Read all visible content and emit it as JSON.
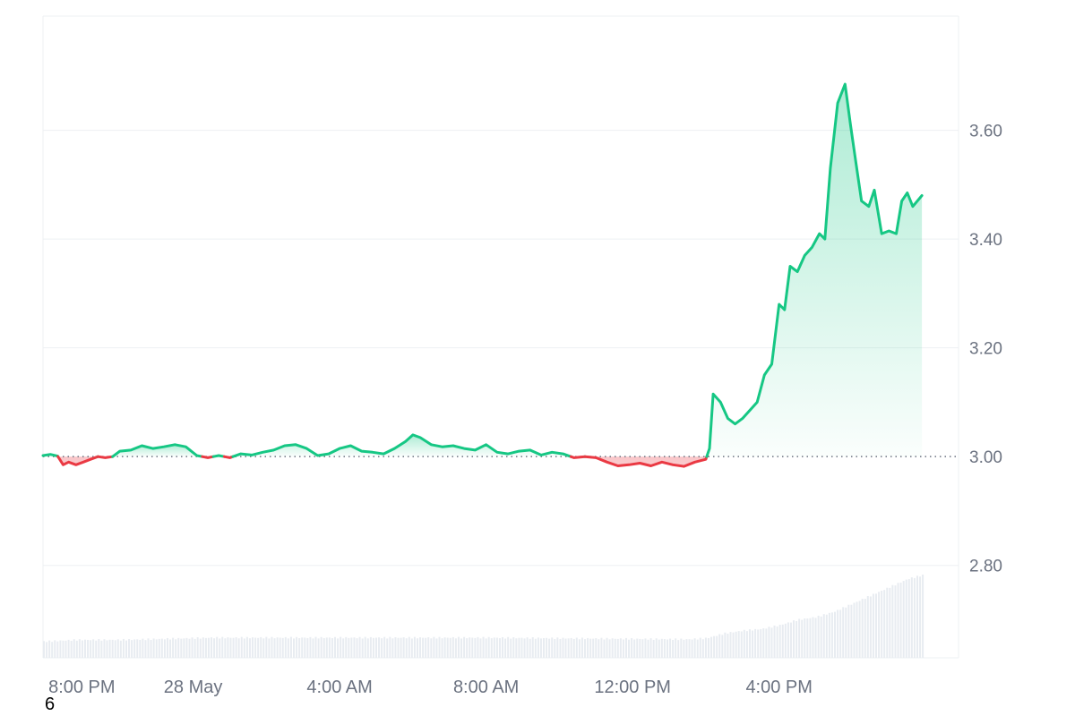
{
  "chart_data": {
    "type": "area",
    "baseline": 3.0,
    "ylim": [
      2.63,
      3.81
    ],
    "y_ticks": [
      "2.80",
      "3.00",
      "3.20",
      "3.40",
      "3.60"
    ],
    "x_ticks": [
      "8:00 PM",
      "28 May",
      "4:00 AM",
      "8:00 AM",
      "12:00 PM",
      "4:00 PM"
    ],
    "x_range_hours": [
      -0.1,
      24.9
    ],
    "x_tick_hours": [
      0,
      4,
      8,
      12,
      16,
      20
    ],
    "grid": true,
    "colors": {
      "up": "#16c784",
      "down": "#ea3943",
      "grid": "#eef0f3",
      "volume": "#e8ecf1",
      "baseline": "#6b7280"
    },
    "price": [
      [
        -0.1,
        3.002
      ],
      [
        0.1,
        3.004
      ],
      [
        0.3,
        3.001
      ],
      [
        0.45,
        2.985
      ],
      [
        0.6,
        2.99
      ],
      [
        0.8,
        2.985
      ],
      [
        1.0,
        2.99
      ],
      [
        1.2,
        2.995
      ],
      [
        1.4,
        3.0
      ],
      [
        1.6,
        2.998
      ],
      [
        1.8,
        3.0
      ],
      [
        2.0,
        3.01
      ],
      [
        2.3,
        3.012
      ],
      [
        2.6,
        3.02
      ],
      [
        2.9,
        3.015
      ],
      [
        3.2,
        3.018
      ],
      [
        3.5,
        3.022
      ],
      [
        3.8,
        3.018
      ],
      [
        4.1,
        3.002
      ],
      [
        4.4,
        2.998
      ],
      [
        4.7,
        3.002
      ],
      [
        5.0,
        2.998
      ],
      [
        5.3,
        3.005
      ],
      [
        5.6,
        3.003
      ],
      [
        5.9,
        3.008
      ],
      [
        6.2,
        3.012
      ],
      [
        6.5,
        3.02
      ],
      [
        6.8,
        3.022
      ],
      [
        7.1,
        3.015
      ],
      [
        7.4,
        3.002
      ],
      [
        7.7,
        3.005
      ],
      [
        8.0,
        3.015
      ],
      [
        8.3,
        3.02
      ],
      [
        8.6,
        3.01
      ],
      [
        8.9,
        3.008
      ],
      [
        9.2,
        3.005
      ],
      [
        9.5,
        3.015
      ],
      [
        9.8,
        3.028
      ],
      [
        10.0,
        3.04
      ],
      [
        10.2,
        3.035
      ],
      [
        10.5,
        3.022
      ],
      [
        10.8,
        3.018
      ],
      [
        11.1,
        3.02
      ],
      [
        11.4,
        3.015
      ],
      [
        11.7,
        3.012
      ],
      [
        12.0,
        3.022
      ],
      [
        12.3,
        3.008
      ],
      [
        12.6,
        3.005
      ],
      [
        12.9,
        3.01
      ],
      [
        13.2,
        3.012
      ],
      [
        13.5,
        3.003
      ],
      [
        13.8,
        3.008
      ],
      [
        14.1,
        3.005
      ],
      [
        14.4,
        2.998
      ],
      [
        14.7,
        3.0
      ],
      [
        15.0,
        2.998
      ],
      [
        15.3,
        2.99
      ],
      [
        15.6,
        2.983
      ],
      [
        15.9,
        2.985
      ],
      [
        16.2,
        2.988
      ],
      [
        16.5,
        2.983
      ],
      [
        16.8,
        2.99
      ],
      [
        17.1,
        2.985
      ],
      [
        17.4,
        2.982
      ],
      [
        17.7,
        2.99
      ],
      [
        18.0,
        2.995
      ],
      [
        18.1,
        3.015
      ],
      [
        18.2,
        3.115
      ],
      [
        18.4,
        3.1
      ],
      [
        18.6,
        3.07
      ],
      [
        18.8,
        3.06
      ],
      [
        19.0,
        3.07
      ],
      [
        19.2,
        3.085
      ],
      [
        19.4,
        3.1
      ],
      [
        19.6,
        3.15
      ],
      [
        19.8,
        3.17
      ],
      [
        20.0,
        3.28
      ],
      [
        20.15,
        3.27
      ],
      [
        20.3,
        3.35
      ],
      [
        20.5,
        3.34
      ],
      [
        20.7,
        3.37
      ],
      [
        20.9,
        3.385
      ],
      [
        21.1,
        3.41
      ],
      [
        21.25,
        3.4
      ],
      [
        21.4,
        3.53
      ],
      [
        21.6,
        3.65
      ],
      [
        21.8,
        3.685
      ],
      [
        21.95,
        3.61
      ],
      [
        22.1,
        3.54
      ],
      [
        22.25,
        3.47
      ],
      [
        22.45,
        3.46
      ],
      [
        22.6,
        3.49
      ],
      [
        22.8,
        3.41
      ],
      [
        23.0,
        3.415
      ],
      [
        23.2,
        3.41
      ],
      [
        23.35,
        3.47
      ],
      [
        23.5,
        3.485
      ],
      [
        23.65,
        3.46
      ],
      [
        23.9,
        3.48
      ]
    ],
    "volume": [
      [
        -0.1,
        2.66
      ],
      [
        0.8,
        2.663
      ],
      [
        2.0,
        2.663
      ],
      [
        4.5,
        2.667
      ],
      [
        8.0,
        2.667
      ],
      [
        12.0,
        2.667
      ],
      [
        17.5,
        2.664
      ],
      [
        18.0,
        2.666
      ],
      [
        18.5,
        2.675
      ],
      [
        19.0,
        2.68
      ],
      [
        19.5,
        2.683
      ],
      [
        20.0,
        2.69
      ],
      [
        20.5,
        2.7
      ],
      [
        21.0,
        2.705
      ],
      [
        21.5,
        2.715
      ],
      [
        22.0,
        2.73
      ],
      [
        22.5,
        2.745
      ],
      [
        23.0,
        2.76
      ],
      [
        23.5,
        2.775
      ],
      [
        23.9,
        2.782
      ]
    ]
  },
  "footnote": "6"
}
